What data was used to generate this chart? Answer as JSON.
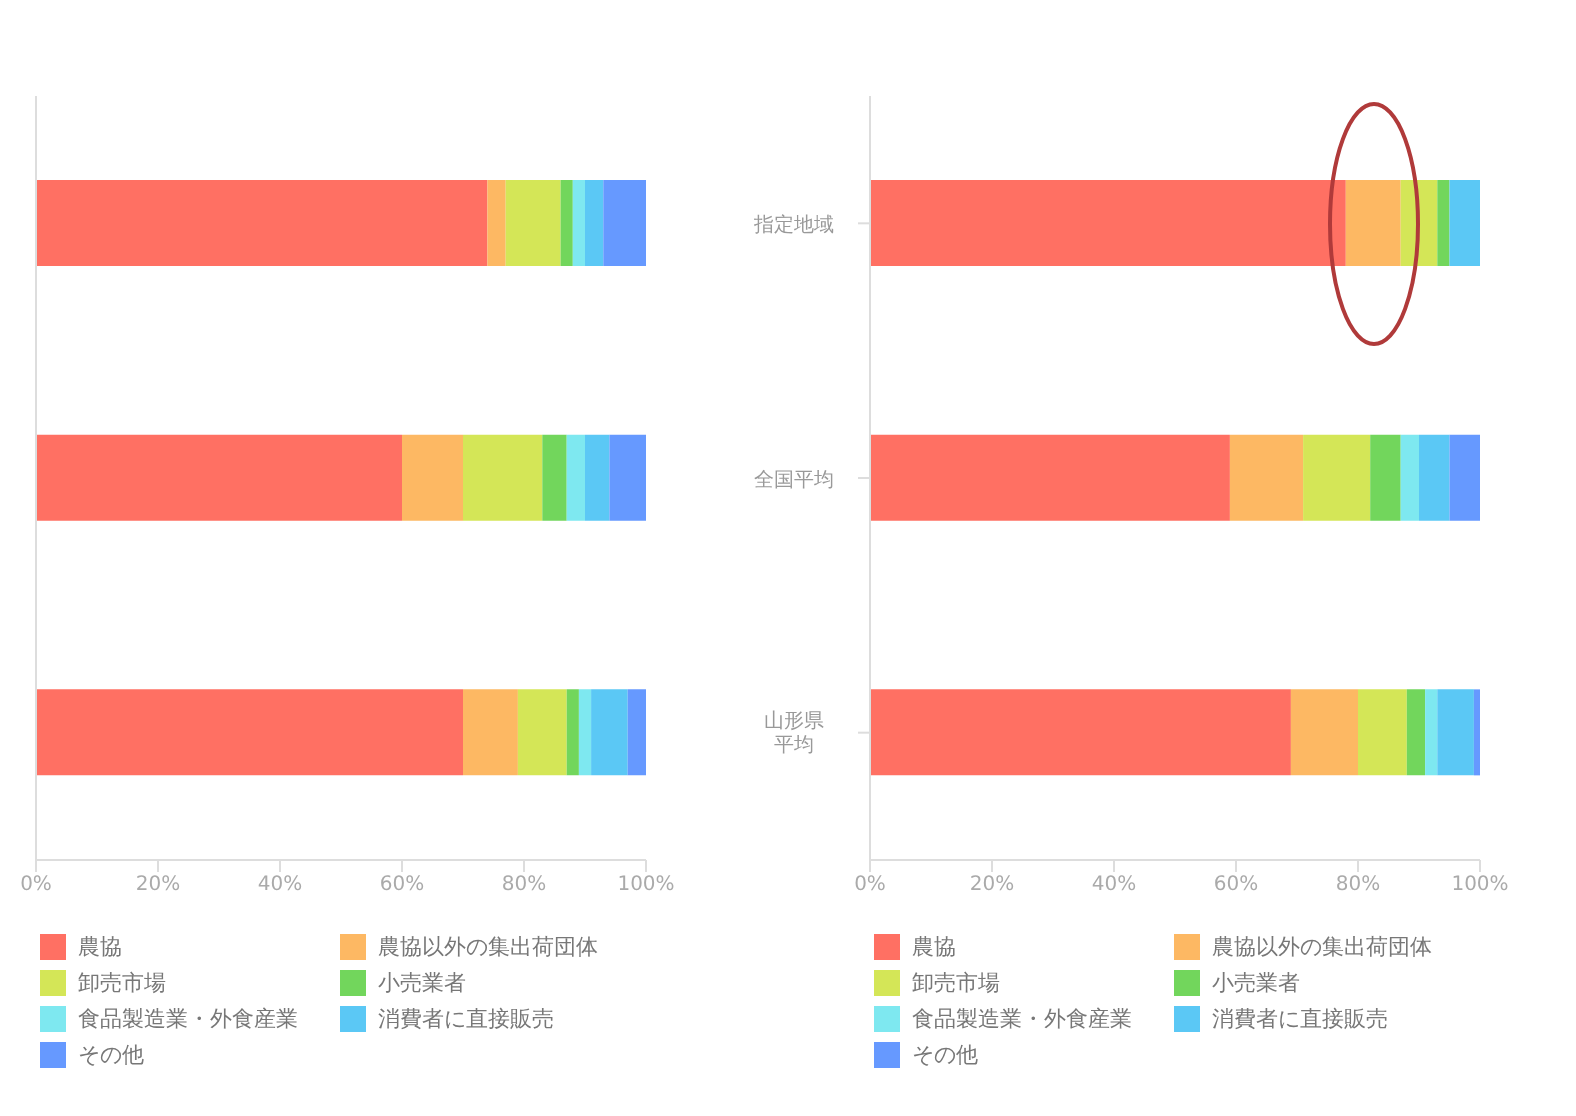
{
  "chart_data": [
    {
      "type": "bar",
      "orientation": "horizontal",
      "stacked": true,
      "tick_labels": "x",
      "legend": "bottom",
      "categories": [
        "指定地域",
        "全国平均",
        "山形県平均"
      ],
      "xlim": [
        0,
        100
      ],
      "xticks": [
        {
          "value": 0,
          "label": "0%"
        },
        {
          "value": 20,
          "label": "20%"
        },
        {
          "value": 40,
          "label": "40%"
        },
        {
          "value": 60,
          "label": "60%"
        },
        {
          "value": 80,
          "label": "80%"
        },
        {
          "value": 100,
          "label": "100%"
        }
      ],
      "series": [
        {
          "name": "農協",
          "color": "#ff7063",
          "values": [
            74,
            60,
            70
          ]
        },
        {
          "name": "農協以外の集出荷団体",
          "color": "#fdb863",
          "values": [
            3,
            10,
            9
          ]
        },
        {
          "name": "卸売市場",
          "color": "#d4e657",
          "values": [
            9,
            13,
            8
          ]
        },
        {
          "name": "小売業者",
          "color": "#72d65c",
          "values": [
            2,
            4,
            2
          ]
        },
        {
          "name": "食品製造業・外食産業",
          "color": "#7ee8f0",
          "values": [
            2,
            3,
            2
          ]
        },
        {
          "name": "消費者に直接販売",
          "color": "#5bc8f5",
          "values": [
            3,
            4,
            6
          ]
        },
        {
          "name": "その他",
          "color": "#6699ff",
          "values": [
            7,
            6,
            3
          ]
        }
      ]
    },
    {
      "type": "bar",
      "orientation": "horizontal",
      "stacked": true,
      "legend": "bottom",
      "categories": [
        "指定地域",
        "全国平均",
        "山形県平均"
      ],
      "xlim": [
        0,
        100
      ],
      "xticks": [
        {
          "value": 0,
          "label": "0%"
        },
        {
          "value": 20,
          "label": "20%"
        },
        {
          "value": 40,
          "label": "40%"
        },
        {
          "value": 60,
          "label": "60%"
        },
        {
          "value": 80,
          "label": "80%"
        },
        {
          "value": 100,
          "label": "100%"
        }
      ],
      "series": [
        {
          "name": "農協",
          "color": "#ff7063",
          "values": [
            78,
            59,
            69
          ]
        },
        {
          "name": "農協以外の集出荷団体",
          "color": "#fdb863",
          "values": [
            9,
            12,
            11
          ]
        },
        {
          "name": "卸売市場",
          "color": "#d4e657",
          "values": [
            6,
            11,
            8
          ]
        },
        {
          "name": "小売業者",
          "color": "#72d65c",
          "values": [
            2,
            5,
            3
          ]
        },
        {
          "name": "食品製造業・外食産業",
          "color": "#7ee8f0",
          "values": [
            0,
            3,
            2
          ]
        },
        {
          "name": "消費者に直接販売",
          "color": "#5bc8f5",
          "values": [
            5,
            5,
            6
          ]
        },
        {
          "name": "その他",
          "color": "#6699ff",
          "values": [
            0,
            5,
            1
          ]
        }
      ]
    }
  ]
}
